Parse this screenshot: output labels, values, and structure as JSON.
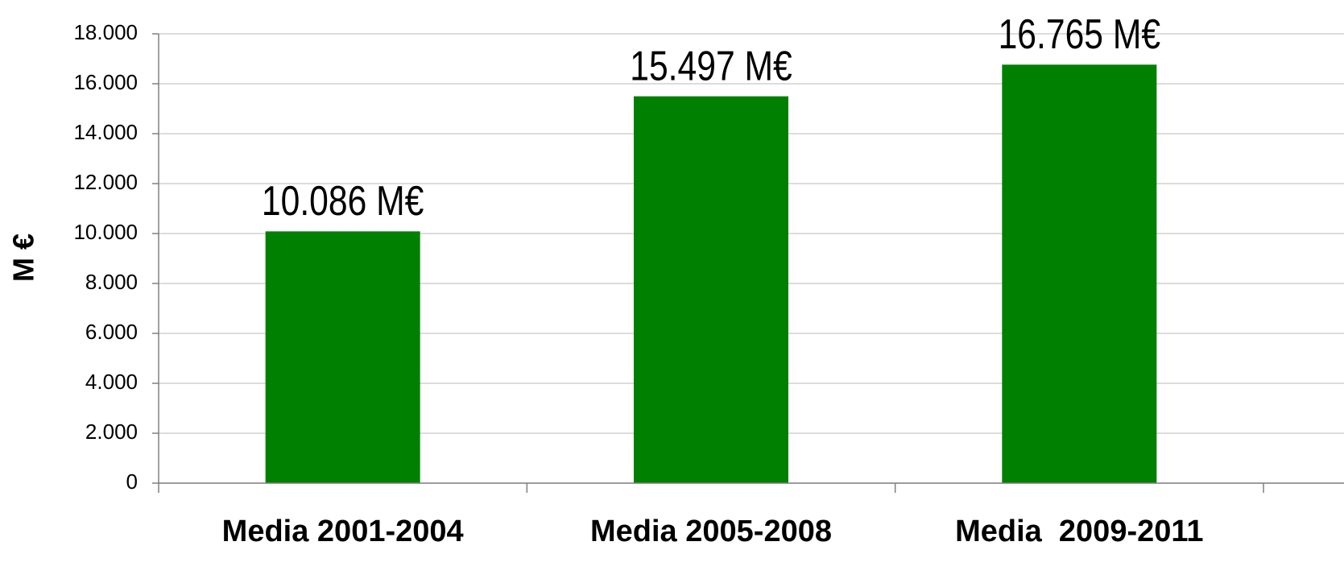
{
  "chart_data": {
    "type": "bar",
    "y_label": "M €",
    "categories": [
      "Media 2001-2004",
      "Media 2005-2008",
      "Media  2009-2011"
    ],
    "values": [
      10086,
      15497,
      16765
    ],
    "value_labels": [
      "10.086 M€",
      "15.497 M€",
      "16.765 M€"
    ],
    "color": "#008000",
    "ylim": [
      0,
      18000
    ],
    "yticks": [
      0,
      {
        "value": 2000,
        "label": "2.000"
      },
      {
        "value": 4000,
        "label": "4.000"
      },
      {
        "value": 6000,
        "label": "6.000"
      },
      {
        "value": 8000,
        "label": "8.000"
      },
      {
        "value": 10000,
        "label": "10.000"
      },
      {
        "value": 12000,
        "label": "12.000"
      },
      {
        "value": 14000,
        "label": "14.000"
      },
      {
        "value": 16000,
        "label": "16.000"
      },
      {
        "value": 18000,
        "label": "18.000"
      }
    ],
    "grid": true
  }
}
